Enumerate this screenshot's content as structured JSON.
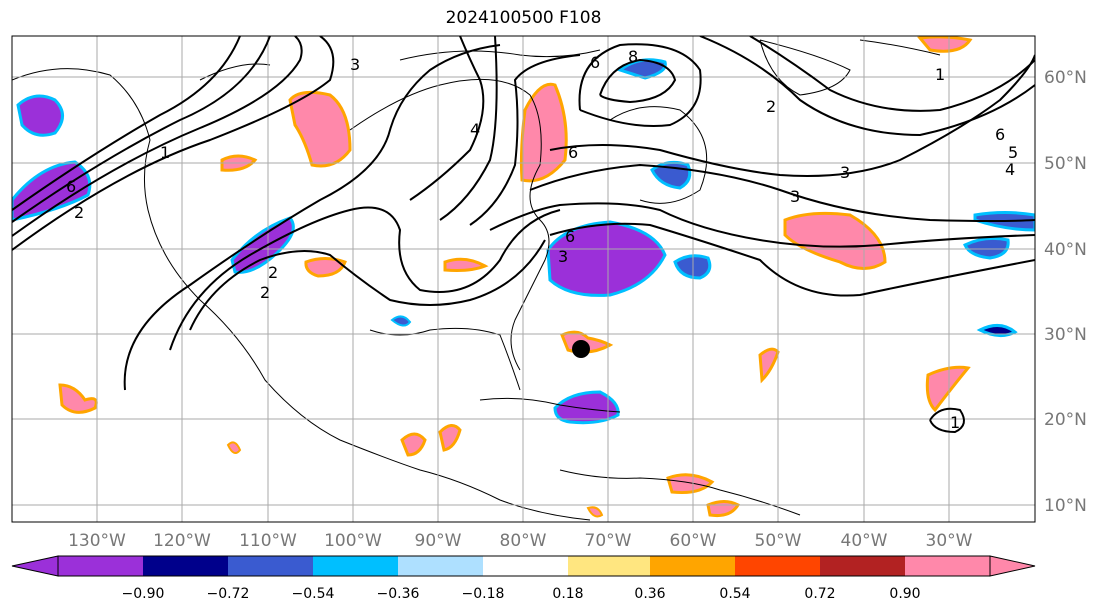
{
  "title": "2024100500 F108",
  "map": {
    "lon_labels": [
      "130°W",
      "120°W",
      "110°W",
      "100°W",
      "90°W",
      "80°W",
      "70°W",
      "60°W",
      "50°W",
      "40°W",
      "30°W"
    ],
    "lat_labels": [
      "60°N",
      "50°N",
      "40°N",
      "30°N",
      "20°N",
      "10°N"
    ],
    "contour_labels": [
      "6",
      "1",
      "2",
      "3",
      "4",
      "6",
      "3",
      "2",
      "8",
      "6",
      "1",
      "2",
      "3",
      "6",
      "5",
      "4",
      "3",
      "2",
      "6",
      "1"
    ],
    "marker": "storm-center-dot"
  },
  "colorbar": {
    "ticks": [
      "−0.90",
      "−0.72",
      "−0.54",
      "−0.36",
      "−0.18",
      "0.18",
      "0.36",
      "0.54",
      "0.72",
      "0.90"
    ],
    "colors": [
      "#9b30d9",
      "#00008b",
      "#3a5bd0",
      "#00bfff",
      "#aee0ff",
      "#ffffff",
      "#ffe680",
      "#ffa500",
      "#ff4500",
      "#b22222",
      "#ff88aa"
    ]
  }
}
